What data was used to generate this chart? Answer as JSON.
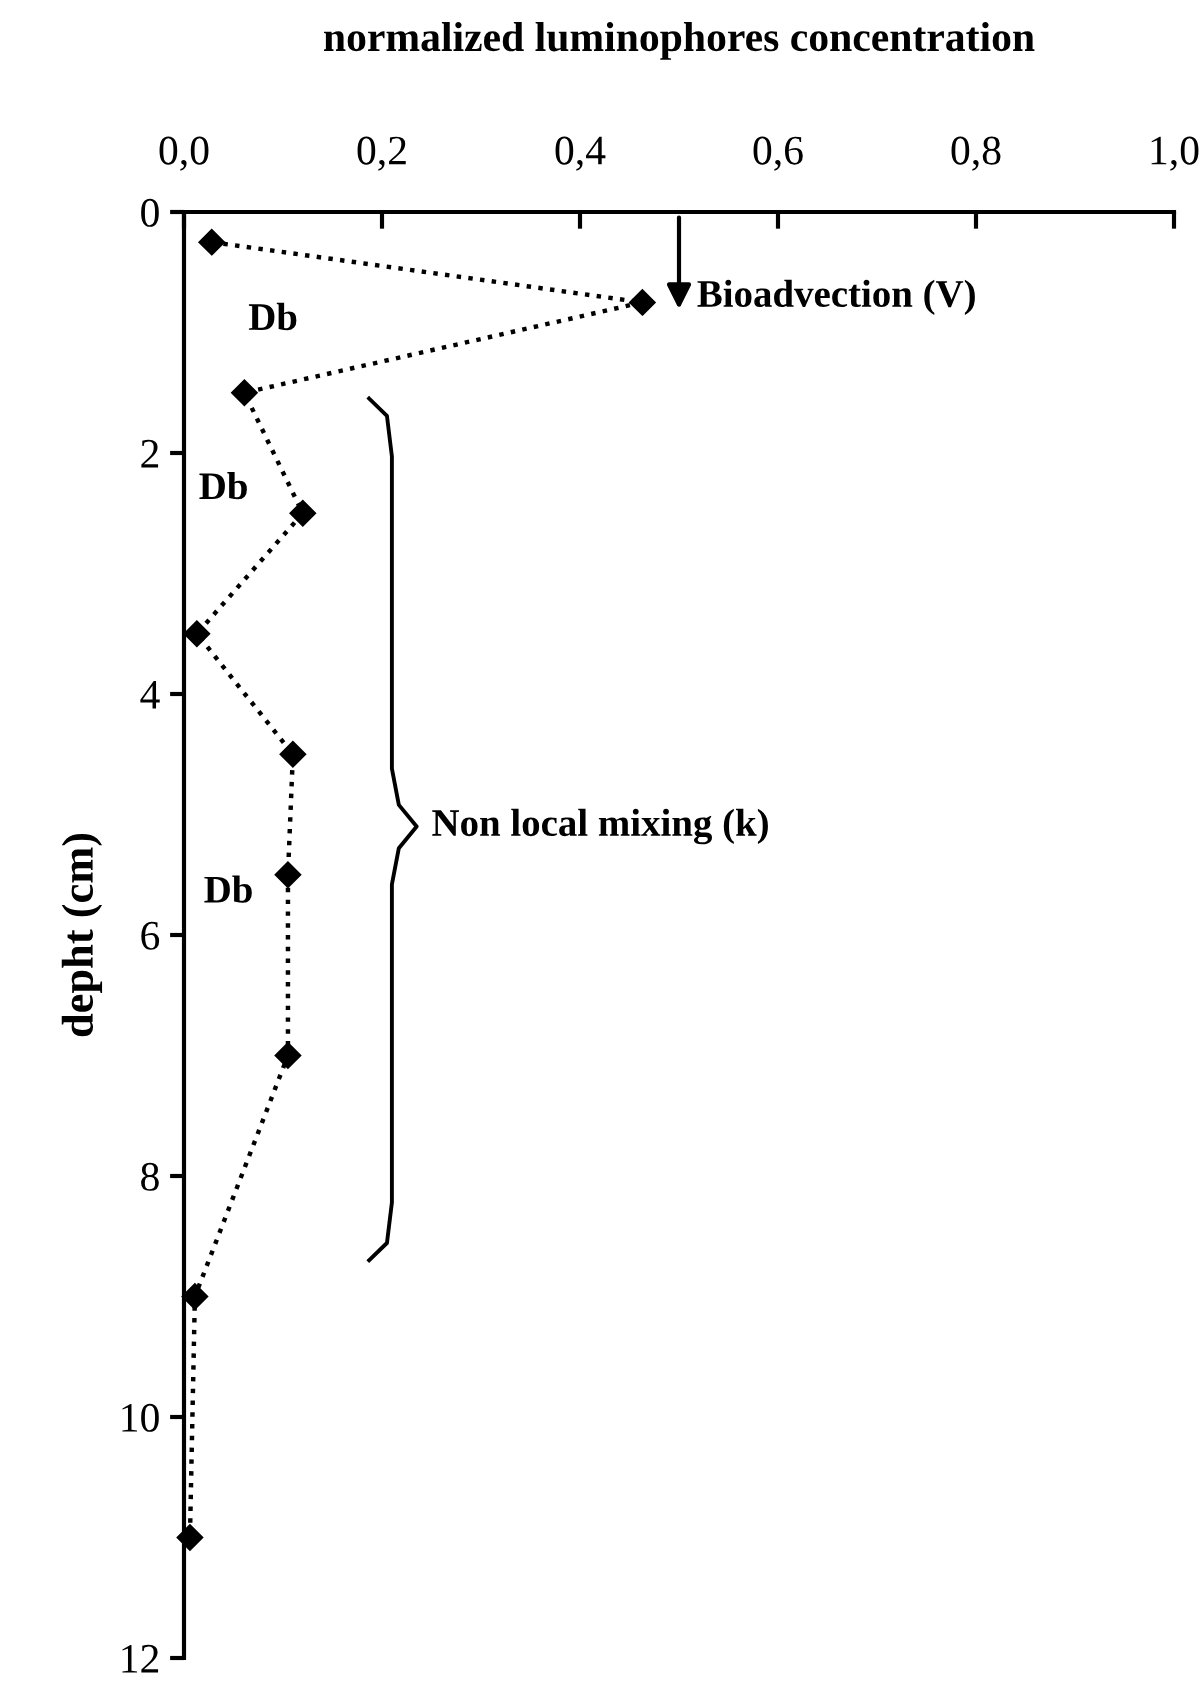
{
  "chart_data": {
    "type": "line",
    "title": "normalized luminophores concentration",
    "ylabel": "depht (cm)",
    "series": [
      {
        "color": "#000000",
        "x": [
          0.028,
          0.463,
          0.061,
          0.12,
          0.013,
          0.11,
          0.105,
          0.105,
          0.011,
          0.006
        ],
        "values": [
          0.25,
          0.75,
          1.5,
          2.5,
          3.5,
          4.5,
          5.5,
          7.0,
          9.0,
          11.0
        ]
      }
    ],
    "xlim": [
      0,
      1
    ],
    "xticks": [
      {
        "value": 0,
        "label": "0,0"
      },
      {
        "value": 0.2,
        "label": "0,2"
      },
      {
        "value": 0.4,
        "label": "0,4"
      },
      {
        "value": 0.6,
        "label": "0,6"
      },
      {
        "value": 0.8,
        "label": "0,8"
      },
      {
        "value": 1,
        "label": "1,0"
      }
    ],
    "ylim": [
      12,
      0
    ],
    "yticks": [
      0,
      2,
      4,
      6,
      8,
      10,
      12
    ],
    "marker": "diamond",
    "line_style": "dotted",
    "grid": false,
    "annotations": [
      "Bioadvection (V)",
      "Db",
      "Db",
      "Db",
      "Non local mixing (k)"
    ]
  }
}
